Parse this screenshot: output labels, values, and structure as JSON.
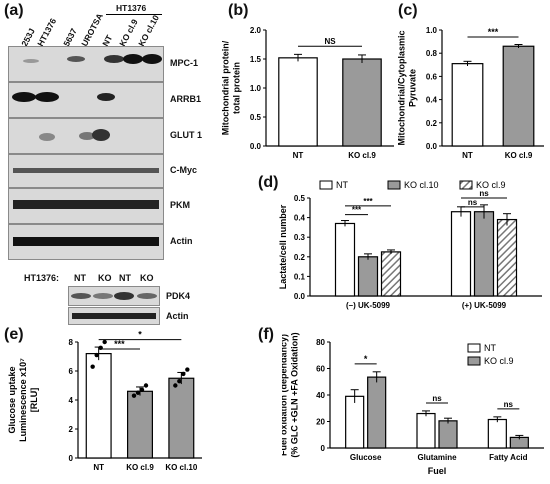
{
  "panels": {
    "a": {
      "label": "(a)",
      "lanes": [
        "253J",
        "HT1376",
        "5637",
        "UROTSA",
        "NT",
        "KO cl.9",
        "KO cl.10"
      ],
      "lane_group": "HT1376",
      "proteins": [
        "MPC-1",
        "ARRB1",
        "GLUT 1",
        "C-Myc",
        "PKM",
        "Actin"
      ],
      "inset_cell_line": "HT1376:",
      "inset_lanes": [
        "NT",
        "KO",
        "NT",
        "KO"
      ],
      "inset_proteins": [
        "PDK4",
        "Actin"
      ]
    },
    "b": {
      "label": "(b)"
    },
    "c": {
      "label": "(c)"
    },
    "d": {
      "label": "(d)"
    },
    "e": {
      "label": "(e)"
    },
    "f": {
      "label": "(f)"
    }
  },
  "chart_data": [
    {
      "panel": "b",
      "type": "bar",
      "categories": [
        "NT",
        "KO cl.9"
      ],
      "values": [
        1.52,
        1.5
      ],
      "errors": [
        0.06,
        0.07
      ],
      "ylabel": "Mitochondrial protein/ total protein",
      "ylim": [
        0,
        2.0
      ],
      "yticks": [
        "0.0",
        "0.5",
        "1.0",
        "1.5",
        "2.0"
      ],
      "colors": [
        "#ffffff",
        "#9a9a9a"
      ],
      "annotations": [
        {
          "text": "NS",
          "between": [
            0,
            1
          ]
        }
      ]
    },
    {
      "panel": "c",
      "type": "bar",
      "categories": [
        "NT",
        "KO cl.9"
      ],
      "values": [
        0.71,
        0.86
      ],
      "errors": [
        0.02,
        0.015
      ],
      "ylabel": "Mitochondrial/Cytoplasmic Pyruvate",
      "ylim": [
        0,
        1.0
      ],
      "yticks": [
        "0.0",
        "0.2",
        "0.4",
        "0.6",
        "0.8",
        "1.0"
      ],
      "colors": [
        "#ffffff",
        "#9a9a9a"
      ],
      "annotations": [
        {
          "text": "***",
          "between": [
            0,
            1
          ]
        }
      ]
    },
    {
      "panel": "d",
      "type": "bar",
      "categories": [
        "(–) UK-5099",
        "(+) UK-5099"
      ],
      "series": [
        {
          "name": "NT",
          "values": [
            0.37,
            0.43
          ],
          "errors": [
            0.015,
            0.025
          ],
          "color": "#ffffff",
          "hatch": false
        },
        {
          "name": "KO cl.10",
          "values": [
            0.2,
            0.43
          ],
          "errors": [
            0.015,
            0.035
          ],
          "color": "#9a9a9a",
          "hatch": false
        },
        {
          "name": "KO cl.9",
          "values": [
            0.225,
            0.39
          ],
          "errors": [
            0.01,
            0.03
          ],
          "color": "#9a9a9a",
          "hatch": true
        }
      ],
      "ylabel": "Lactate/cell number",
      "ylim": [
        0,
        0.5
      ],
      "yticks": [
        "0.0",
        "0.1",
        "0.2",
        "0.3",
        "0.4",
        "0.5"
      ],
      "legend": "top",
      "annotations": [
        {
          "text": "***",
          "group": 0,
          "between": [
            0,
            2
          ]
        },
        {
          "text": "***",
          "group": 0,
          "between": [
            0,
            1
          ]
        },
        {
          "text": "ns",
          "group": 1,
          "between": [
            0,
            2
          ]
        },
        {
          "text": "ns",
          "group": 1,
          "between": [
            0,
            1
          ]
        }
      ]
    },
    {
      "panel": "e",
      "type": "bar",
      "categories": [
        "NT",
        "KO cl.9",
        "KO cl.10"
      ],
      "values": [
        7.2,
        4.6,
        5.5
      ],
      "errors": [
        0.45,
        0.3,
        0.4
      ],
      "points": [
        [
          6.3,
          7.1,
          7.6,
          8.0
        ],
        [
          4.3,
          4.5,
          4.7,
          5.0
        ],
        [
          5.0,
          5.3,
          5.8,
          6.1
        ]
      ],
      "ylabel": "Glucose uptake Luminescence x10⁷ [RLU]",
      "ylim": [
        0,
        8
      ],
      "yticks": [
        "0",
        "2",
        "4",
        "6",
        "8"
      ],
      "colors": [
        "#ffffff",
        "#9a9a9a",
        "#9a9a9a"
      ],
      "annotations": [
        {
          "text": "***",
          "between": [
            0,
            1
          ]
        },
        {
          "text": "*",
          "between": [
            0,
            2
          ]
        }
      ]
    },
    {
      "panel": "f",
      "type": "bar",
      "categories": [
        "Glucose",
        "Glutamine",
        "Fatty Acid"
      ],
      "series": [
        {
          "name": "NT",
          "values": [
            39,
            26,
            21.5
          ],
          "errors": [
            5,
            2,
            2
          ],
          "color": "#ffffff"
        },
        {
          "name": "KO cl.9",
          "values": [
            53.5,
            20.5,
            8
          ],
          "errors": [
            4,
            2,
            1.5
          ],
          "color": "#9a9a9a"
        }
      ],
      "xlabel": "Fuel",
      "ylabel": "Fuel oxidation (dependancy) (% GLC +GLN +FA Oxidation)",
      "ylim": [
        0,
        80
      ],
      "yticks": [
        "0",
        "20",
        "40",
        "60",
        "80"
      ],
      "legend": "top-right",
      "annotations": [
        {
          "text": "*",
          "group": 0
        },
        {
          "text": "ns",
          "group": 1
        },
        {
          "text": "ns",
          "group": 2
        }
      ]
    }
  ]
}
